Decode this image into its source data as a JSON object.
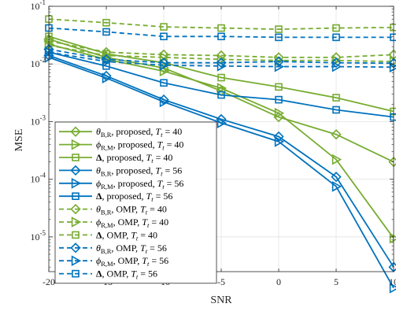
{
  "chart_data": {
    "type": "line",
    "x": [
      -20,
      -15,
      -10,
      -5,
      0,
      5,
      10
    ],
    "xlabel": "SNR",
    "ylabel": "MSE",
    "xlim": [
      -20,
      10
    ],
    "ylim": [
      2.5e-06,
      0.1
    ],
    "yscale": "log",
    "grid": true,
    "legend_placement": "middle-left",
    "x_ticks": [
      "-20",
      "-15",
      "-10",
      "-5",
      "0",
      "5",
      "10"
    ],
    "y_ticks": [
      {
        "value": 0.1,
        "base": "10",
        "exp": "-1"
      },
      {
        "value": 0.01,
        "base": "10",
        "exp": "-2"
      },
      {
        "value": 0.001,
        "base": "10",
        "exp": "-3"
      },
      {
        "value": 0.0001,
        "base": "10",
        "exp": "-4"
      },
      {
        "value": 1e-05,
        "base": "10",
        "exp": "-5"
      }
    ],
    "colors": {
      "green": "#77ac30",
      "blue": "#0072bd"
    },
    "series": [
      {
        "legend": [
          "θ",
          "B,R",
          ", proposed, ",
          "T",
          "t",
          " = 40"
        ],
        "color": "green",
        "dash": false,
        "marker": "diamond",
        "values": [
          0.027,
          0.013,
          0.0085,
          0.0034,
          0.0012,
          0.0006,
          0.0002
        ]
      },
      {
        "legend": [
          "ϕ",
          "R,M",
          ", proposed, ",
          "T",
          "t",
          " = 40"
        ],
        "color": "green",
        "dash": false,
        "marker": "triangle-right",
        "values": [
          0.022,
          0.012,
          0.0075,
          0.0038,
          0.0014,
          0.00022,
          9.5e-06
        ]
      },
      {
        "legend": [
          "Δ",
          "",
          ", proposed, ",
          "T",
          "t",
          " = 40"
        ],
        "color": "green",
        "dash": false,
        "marker": "square",
        "values": [
          0.03,
          0.015,
          0.0105,
          0.0058,
          0.004,
          0.0026,
          0.0015
        ]
      },
      {
        "legend": [
          "θ",
          "B,R",
          ", proposed, ",
          "T",
          "t",
          " = 56"
        ],
        "color": "blue",
        "dash": false,
        "marker": "diamond",
        "values": [
          0.014,
          0.0062,
          0.0024,
          0.0011,
          0.00055,
          0.00011,
          3e-06
        ]
      },
      {
        "legend": [
          "ϕ",
          "R,M",
          ", proposed, ",
          "T",
          "t",
          " = 56"
        ],
        "color": "blue",
        "dash": false,
        "marker": "triangle-right",
        "values": [
          0.013,
          0.0057,
          0.0022,
          0.00095,
          0.00045,
          7.5e-05,
          1.3e-06
        ]
      },
      {
        "legend": [
          "Δ",
          "",
          ", proposed, ",
          "T",
          "t",
          " = 56"
        ],
        "color": "blue",
        "dash": false,
        "marker": "square",
        "values": [
          0.016,
          0.0092,
          0.0047,
          0.0029,
          0.0024,
          0.0016,
          0.0012
        ]
      },
      {
        "legend": [
          "θ",
          "B,R",
          ", OMP, ",
          "T",
          "t",
          " = 40"
        ],
        "color": "green",
        "dash": true,
        "marker": "diamond",
        "values": [
          0.025,
          0.016,
          0.0145,
          0.014,
          0.013,
          0.013,
          0.0145
        ]
      },
      {
        "legend": [
          "ϕ",
          "R,M",
          ", OMP, ",
          "T",
          "t",
          " = 40"
        ],
        "color": "green",
        "dash": true,
        "marker": "triangle-right",
        "values": [
          0.021,
          0.014,
          0.013,
          0.012,
          0.0115,
          0.0115,
          0.011
        ]
      },
      {
        "legend": [
          "Δ",
          "",
          ", OMP, ",
          "T",
          "t",
          " = 40"
        ],
        "color": "green",
        "dash": true,
        "marker": "square",
        "values": [
          0.06,
          0.052,
          0.044,
          0.042,
          0.04,
          0.042,
          0.043
        ]
      },
      {
        "legend": [
          "θ",
          "B,R",
          ", OMP, ",
          "T",
          "t",
          " = 56"
        ],
        "color": "blue",
        "dash": true,
        "marker": "diamond",
        "values": [
          0.018,
          0.012,
          0.0105,
          0.0105,
          0.011,
          0.0105,
          0.0103
        ]
      },
      {
        "legend": [
          "ϕ",
          "R,M",
          ", OMP, ",
          "T",
          "t",
          " = 56"
        ],
        "color": "blue",
        "dash": true,
        "marker": "triangle-right",
        "values": [
          0.016,
          0.011,
          0.0095,
          0.0092,
          0.009,
          0.009,
          0.0088
        ]
      },
      {
        "legend": [
          "Δ",
          "",
          ", OMP, ",
          "T",
          "t",
          " = 56"
        ],
        "color": "blue",
        "dash": true,
        "marker": "square",
        "values": [
          0.042,
          0.036,
          0.03,
          0.03,
          0.029,
          0.029,
          0.029
        ]
      }
    ]
  }
}
